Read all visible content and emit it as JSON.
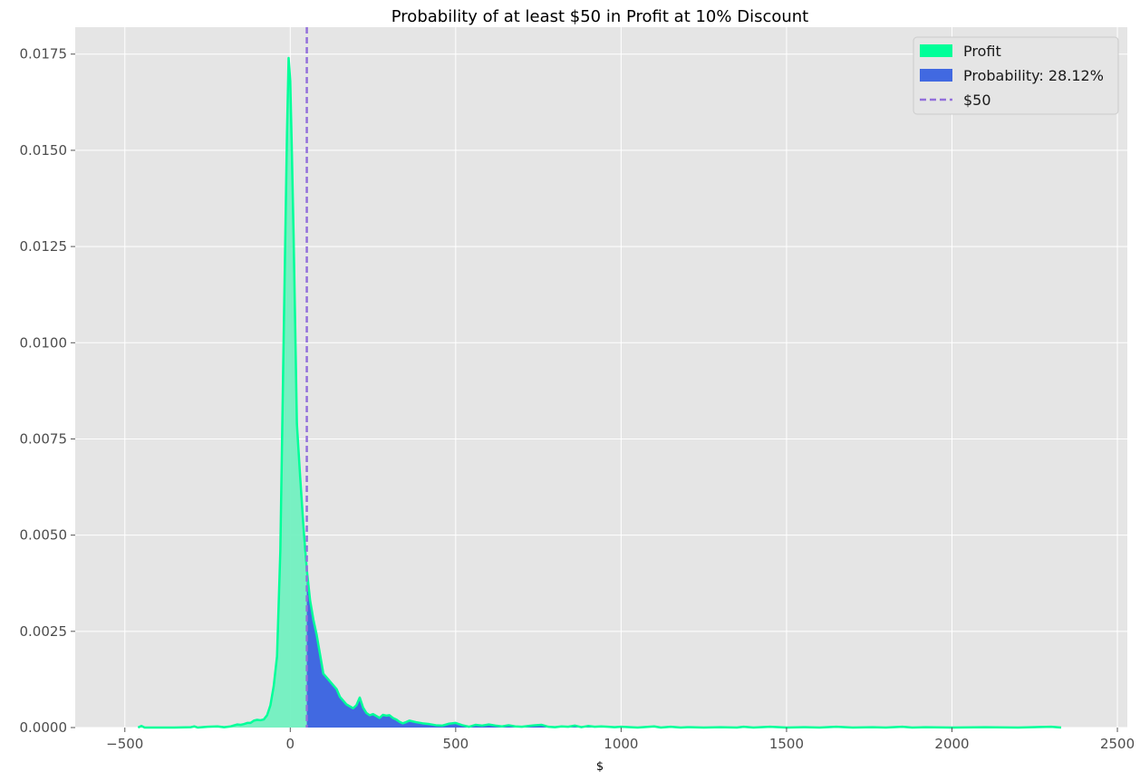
{
  "chart_data": {
    "type": "area",
    "title": "Probability of at least $50 in Profit at 10% Discount",
    "xlabel": "$",
    "ylabel": "",
    "xlim": [
      -650,
      2530
    ],
    "ylim": [
      0,
      0.0182
    ],
    "grid": true,
    "legend_position": "top-right",
    "x_ticks": [
      -500,
      0,
      500,
      1000,
      1500,
      2000,
      2500
    ],
    "x_tick_labels": [
      "−500",
      "0",
      "500",
      "1000",
      "1500",
      "2000",
      "2500"
    ],
    "y_ticks": [
      0,
      0.0025,
      0.005,
      0.0075,
      0.01,
      0.0125,
      0.015,
      0.0175
    ],
    "y_tick_labels": [
      "0.0000",
      "0.0025",
      "0.0050",
      "0.0075",
      "0.0100",
      "0.0125",
      "0.0150",
      "0.0175"
    ],
    "threshold": 50,
    "series": [
      {
        "name": "Profit",
        "color": "#00ff99",
        "x": [
          -460,
          -450,
          -440,
          -400,
          -350,
          -300,
          -290,
          -280,
          -250,
          -220,
          -200,
          -180,
          -160,
          -150,
          -140,
          -130,
          -120,
          -110,
          -100,
          -90,
          -80,
          -70,
          -60,
          -50,
          -40,
          -30,
          -20,
          -10,
          -5,
          0,
          5,
          10,
          15,
          20,
          30,
          40,
          50,
          60,
          70,
          80,
          90,
          100,
          110,
          120,
          130,
          140,
          150,
          160,
          170,
          180,
          190,
          200,
          210,
          220,
          230,
          240,
          250,
          260,
          270,
          280,
          290,
          300,
          310,
          320,
          330,
          340,
          350,
          360,
          380,
          400,
          420,
          440,
          460,
          480,
          500,
          520,
          540,
          560,
          580,
          600,
          620,
          640,
          660,
          680,
          700,
          720,
          740,
          760,
          780,
          800,
          820,
          840,
          860,
          880,
          900,
          920,
          940,
          960,
          980,
          1000,
          1050,
          1100,
          1120,
          1150,
          1180,
          1200,
          1250,
          1300,
          1350,
          1370,
          1400,
          1450,
          1500,
          1550,
          1600,
          1650,
          1700,
          1760,
          1800,
          1850,
          1880,
          1920,
          2000,
          2100,
          2200,
          2300,
          2330
        ],
        "y": [
          0,
          4e-05,
          0,
          0,
          0,
          1e-05,
          3e-05,
          0,
          2e-05,
          3e-05,
          1e-05,
          3e-05,
          8e-05,
          7e-05,
          9e-05,
          0.00012,
          0.00012,
          0.00018,
          0.0002,
          0.00019,
          0.00021,
          0.00032,
          0.00058,
          0.00108,
          0.00185,
          0.0046,
          0.0101,
          0.0154,
          0.0174,
          0.0168,
          0.0149,
          0.0128,
          0.0104,
          0.0079,
          0.0065,
          0.0052,
          0.0041,
          0.0033,
          0.0028,
          0.0024,
          0.0019,
          0.0014,
          0.0013,
          0.0012,
          0.0011,
          0.001,
          0.0008,
          0.0007,
          0.0006,
          0.00055,
          0.0005,
          0.00058,
          0.00078,
          0.00052,
          0.00038,
          0.00032,
          0.00035,
          0.0003,
          0.00025,
          0.00033,
          0.00031,
          0.00032,
          0.00025,
          0.00021,
          0.00015,
          0.00011,
          0.00014,
          0.00018,
          0.00014,
          0.00011,
          9e-05,
          6e-05,
          5e-05,
          0.0001,
          0.00012,
          6e-05,
          2e-05,
          7e-05,
          5e-05,
          8e-05,
          5e-05,
          3e-05,
          6e-05,
          3e-05,
          2e-05,
          4e-05,
          6e-05,
          7e-05,
          2e-05,
          1e-05,
          3e-05,
          2e-05,
          5e-05,
          1e-05,
          4e-05,
          2e-05,
          3e-05,
          2e-05,
          1e-05,
          2e-05,
          0,
          3e-05,
          0,
          2e-05,
          0,
          1e-05,
          0,
          1e-05,
          0,
          2e-05,
          0,
          2e-05,
          0,
          1e-05,
          0,
          2e-05,
          0,
          1e-05,
          0,
          2e-05,
          0,
          1e-05,
          0,
          1e-05,
          0,
          2e-05,
          0
        ]
      },
      {
        "name": "Probability: 28.12%",
        "color": "#4169e1",
        "fill_from": 50
      },
      {
        "name": "$50",
        "color": "#9370db",
        "line_style": "dashed",
        "vertical_x": 50
      }
    ]
  },
  "colors": {
    "plot_background": "#e5e5e5",
    "grid": "#ffffff",
    "profit_fill_light": "#72f0c0",
    "profit_line": "#00ff99",
    "probability_fill": "#4169e1",
    "threshold_line": "#9370db"
  }
}
